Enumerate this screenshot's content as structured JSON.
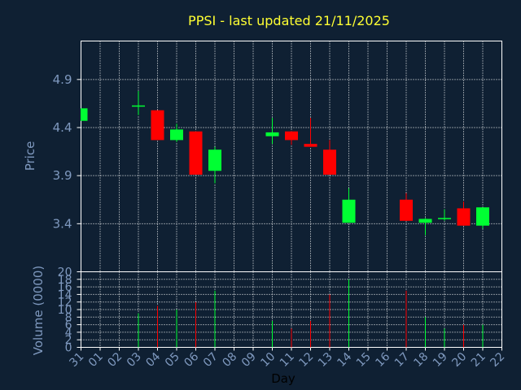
{
  "chart_data": [
    {
      "type": "candlestick",
      "title": "PPSI - last updated 21/11/2025",
      "ylabel": "Price",
      "yticks": [
        "3.4",
        "3.9",
        "4.4",
        "4.9"
      ],
      "ylim": [
        2.9,
        5.3
      ],
      "grid": true,
      "colors": {
        "up": "#00ff33",
        "down": "#ff0000",
        "grid": "#ffffff",
        "axis": "#ffffff",
        "background": "#0f2033"
      },
      "candles": [
        {
          "day": "31",
          "open": 4.47,
          "high": 4.6,
          "low": 4.47,
          "close": 4.6
        },
        {
          "day": "03",
          "open": 4.63,
          "high": 4.78,
          "low": 4.53,
          "close": 4.63
        },
        {
          "day": "04",
          "open": 4.58,
          "high": 4.58,
          "low": 4.27,
          "close": 4.27
        },
        {
          "day": "05",
          "open": 4.27,
          "high": 4.44,
          "low": 4.25,
          "close": 4.38
        },
        {
          "day": "06",
          "open": 4.36,
          "high": 4.36,
          "low": 3.91,
          "close": 3.91
        },
        {
          "day": "07",
          "open": 3.95,
          "high": 4.2,
          "low": 3.82,
          "close": 4.17
        },
        {
          "day": "10",
          "open": 4.31,
          "high": 4.5,
          "low": 4.23,
          "close": 4.35
        },
        {
          "day": "11",
          "open": 4.36,
          "high": 4.36,
          "low": 4.22,
          "close": 4.27
        },
        {
          "day": "12",
          "open": 4.23,
          "high": 4.5,
          "low": 4.2,
          "close": 4.2
        },
        {
          "day": "13",
          "open": 4.17,
          "high": 4.27,
          "low": 3.91,
          "close": 3.91
        },
        {
          "day": "14",
          "open": 3.41,
          "high": 3.77,
          "low": 3.41,
          "close": 3.65
        },
        {
          "day": "17",
          "open": 3.65,
          "high": 3.72,
          "low": 3.43,
          "close": 3.43
        },
        {
          "day": "18",
          "open": 3.41,
          "high": 3.46,
          "low": 3.28,
          "close": 3.45
        },
        {
          "day": "19",
          "open": 3.45,
          "high": 3.55,
          "low": 3.43,
          "close": 3.46
        },
        {
          "day": "20",
          "open": 3.56,
          "high": 3.63,
          "low": 3.38,
          "close": 3.38
        },
        {
          "day": "21",
          "open": 3.38,
          "high": 3.57,
          "low": 3.35,
          "close": 3.57
        }
      ]
    },
    {
      "type": "bar",
      "ylabel": "Volume (0000)",
      "xlabel": "Day",
      "yticks": [
        "0",
        "2",
        "4",
        "6",
        "8",
        "10",
        "12",
        "14",
        "16",
        "18",
        "20"
      ],
      "ylim": [
        0,
        20
      ],
      "categories": [
        "31",
        "01",
        "02",
        "03",
        "04",
        "05",
        "06",
        "07",
        "08",
        "09",
        "10",
        "11",
        "12",
        "13",
        "14",
        "15",
        "16",
        "17",
        "18",
        "19",
        "20",
        "21",
        "22"
      ],
      "values": [
        0,
        0,
        0,
        9,
        11,
        10,
        12,
        15,
        0,
        0,
        7,
        5,
        7,
        14,
        18,
        0,
        0,
        15,
        8,
        5,
        6,
        6,
        0
      ],
      "bar_colors": [
        "",
        "",
        "",
        "up",
        "down",
        "up",
        "down",
        "up",
        "",
        "",
        "up",
        "down",
        "down",
        "down",
        "up",
        "",
        "",
        "down",
        "up",
        "up",
        "down",
        "up",
        ""
      ]
    }
  ]
}
